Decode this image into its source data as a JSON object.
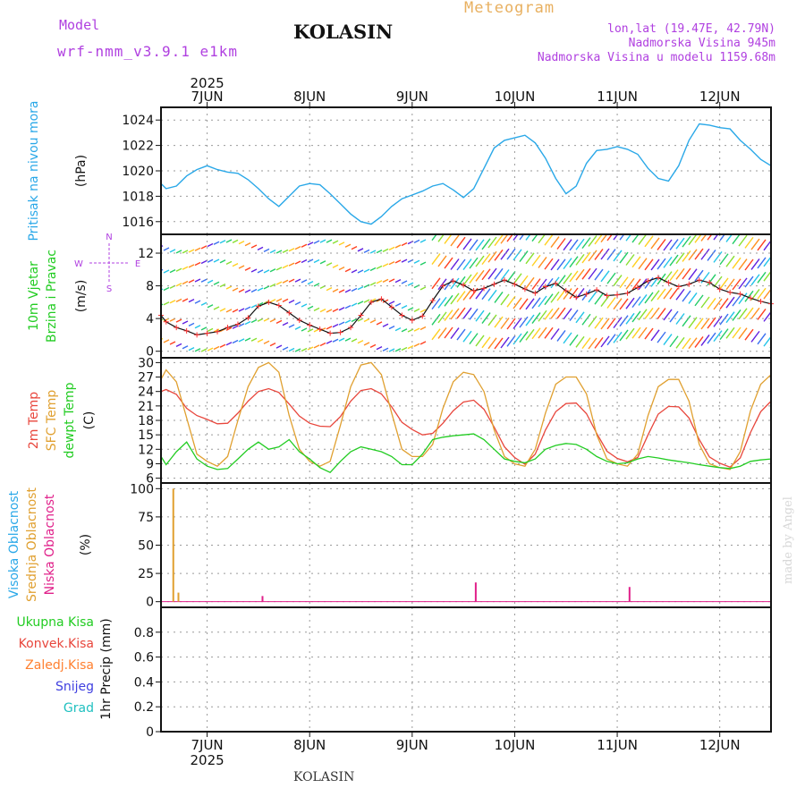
{
  "header": {
    "model_label": "Model",
    "model_name": "wrf-nmm_v3.9.1 e1km",
    "station": "KOLASIN",
    "title": "Meteogram",
    "lonlat": "lon,lat (19.47E, 42.79N)",
    "elevation": "Nadmorska Visina 945m",
    "model_elevation": "Nadmorska Visina u modelu 1159.68m",
    "bottom_station": "KOLASIN",
    "credit": "made by Angel"
  },
  "colors": {
    "pressure": "#2aa8e8",
    "temp2m": "#e8463c",
    "sfc": "#e0a030",
    "dewpt": "#22cc22",
    "mid_cloud": "#e0a030",
    "low_cloud": "#e0208a",
    "high_cloud": "#2aa8e8",
    "purple": "#b040e0"
  },
  "chart_data": [
    {
      "type": "line",
      "panel": "pressure",
      "ylabel": [
        "Pritisak na nivou mora",
        "(hPa)"
      ],
      "ylim": [
        1015,
        1025
      ],
      "yticks": [
        1016,
        1018,
        1020,
        1022,
        1024
      ],
      "xlim": [
        6.55,
        12.5
      ],
      "x_ticks": [
        {
          "x": 7,
          "label": "7JUN"
        },
        {
          "x": 8,
          "label": "8JUN"
        },
        {
          "x": 9,
          "label": "9JUN"
        },
        {
          "x": 10,
          "label": "10JUN"
        },
        {
          "x": 11,
          "label": "11JUN"
        },
        {
          "x": 12,
          "label": "12JUN"
        }
      ],
      "year_label": "2025",
      "series": [
        {
          "x": [
            6.55,
            6.6,
            6.7,
            6.8,
            6.9,
            7.0,
            7.1,
            7.2,
            7.3,
            7.4,
            7.5,
            7.6,
            7.7,
            7.8,
            7.9,
            8.0,
            8.1,
            8.2,
            8.3,
            8.4,
            8.5,
            8.6,
            8.7,
            8.8,
            8.9,
            9.0,
            9.1,
            9.2,
            9.3,
            9.4,
            9.5,
            9.6,
            9.7,
            9.8,
            9.9,
            10.0,
            10.1,
            10.2,
            10.3,
            10.4,
            10.5,
            10.6,
            10.7,
            10.8,
            10.9,
            11.0,
            11.1,
            11.2,
            11.3,
            11.4,
            11.5,
            11.6,
            11.7,
            11.8,
            11.9,
            12.0,
            12.1,
            12.2,
            12.3,
            12.4,
            12.5
          ],
          "y": [
            1019.0,
            1018.6,
            1018.8,
            1019.6,
            1020.1,
            1020.4,
            1020.1,
            1019.9,
            1019.8,
            1019.3,
            1018.6,
            1017.8,
            1017.2,
            1018.0,
            1018.8,
            1019.0,
            1018.9,
            1018.2,
            1017.4,
            1016.6,
            1016.0,
            1015.8,
            1016.4,
            1017.2,
            1017.8,
            1018.1,
            1018.4,
            1018.8,
            1019.0,
            1018.5,
            1017.9,
            1018.6,
            1020.2,
            1021.8,
            1022.4,
            1022.6,
            1022.8,
            1022.2,
            1021.0,
            1019.4,
            1018.2,
            1018.8,
            1020.6,
            1021.6,
            1021.7,
            1021.9,
            1021.7,
            1021.3,
            1020.2,
            1019.4,
            1019.2,
            1020.4,
            1022.4,
            1023.7,
            1023.6,
            1023.4,
            1023.3,
            1022.4,
            1021.7,
            1020.9,
            1020.4
          ]
        }
      ]
    },
    {
      "type": "line",
      "panel": "wind",
      "ylabel": [
        "10m Vjetar",
        "Brzina i Pravac",
        "(m/s)"
      ],
      "compass": {
        "n": "N",
        "e": "E",
        "w": "W",
        "s": "S"
      },
      "ylim": [
        -0.8,
        14.3
      ],
      "yticks": [
        0,
        4,
        8,
        12
      ],
      "series": [
        {
          "name": "Brzina",
          "x": [
            6.55,
            6.6,
            6.7,
            6.8,
            6.9,
            7.0,
            7.1,
            7.2,
            7.3,
            7.4,
            7.5,
            7.6,
            7.7,
            7.8,
            7.9,
            8.0,
            8.1,
            8.2,
            8.3,
            8.4,
            8.5,
            8.6,
            8.7,
            8.8,
            8.9,
            9.0,
            9.1,
            9.2,
            9.3,
            9.4,
            9.5,
            9.6,
            9.7,
            9.8,
            9.9,
            10.0,
            10.1,
            10.2,
            10.3,
            10.4,
            10.5,
            10.6,
            10.7,
            10.8,
            10.9,
            11.0,
            11.1,
            11.2,
            11.3,
            11.4,
            11.5,
            11.6,
            11.7,
            11.8,
            11.9,
            12.0,
            12.1,
            12.2,
            12.3,
            12.4,
            12.5
          ],
          "y": [
            4.4,
            3.6,
            2.9,
            2.5,
            2.0,
            2.2,
            2.4,
            2.9,
            3.3,
            4.1,
            5.5,
            6.0,
            5.6,
            4.7,
            3.8,
            3.2,
            2.7,
            2.2,
            2.3,
            2.9,
            4.4,
            6.0,
            6.4,
            5.4,
            4.4,
            3.8,
            4.3,
            6.2,
            8.0,
            8.6,
            8.1,
            7.4,
            7.7,
            8.2,
            8.7,
            8.2,
            7.6,
            7.1,
            7.9,
            8.3,
            7.4,
            6.6,
            7.0,
            7.5,
            6.8,
            6.9,
            7.1,
            7.8,
            8.6,
            9.0,
            8.4,
            7.9,
            8.2,
            8.7,
            8.4,
            7.6,
            7.2,
            7.0,
            6.5,
            6.1,
            5.8
          ]
        }
      ]
    },
    {
      "type": "line",
      "panel": "temperature",
      "ylabel": [
        "2m Temp",
        "SFC Temp",
        "dewpt Temp",
        "(C)"
      ],
      "ylim": [
        5,
        31
      ],
      "yticks": [
        6,
        9,
        12,
        15,
        18,
        21,
        24,
        27,
        30
      ],
      "series": [
        {
          "name": "2m Temp",
          "x": [
            6.55,
            6.6,
            6.7,
            6.8,
            6.9,
            7.0,
            7.1,
            7.2,
            7.3,
            7.4,
            7.5,
            7.6,
            7.7,
            7.8,
            7.9,
            8.0,
            8.1,
            8.2,
            8.3,
            8.4,
            8.5,
            8.6,
            8.7,
            8.8,
            8.9,
            9.0,
            9.1,
            9.2,
            9.3,
            9.4,
            9.5,
            9.6,
            9.7,
            9.8,
            9.9,
            10.0,
            10.1,
            10.2,
            10.3,
            10.4,
            10.5,
            10.6,
            10.7,
            10.8,
            10.9,
            11.0,
            11.1,
            11.2,
            11.3,
            11.4,
            11.5,
            11.6,
            11.7,
            11.8,
            11.9,
            12.0,
            12.1,
            12.2,
            12.3,
            12.4,
            12.5
          ],
          "y": [
            24.0,
            24.4,
            23.4,
            20.5,
            19.0,
            18.2,
            17.3,
            17.4,
            19.5,
            22.0,
            24.0,
            24.6,
            23.8,
            21.4,
            18.9,
            17.4,
            16.8,
            16.7,
            18.8,
            22.0,
            24.2,
            24.6,
            23.5,
            20.8,
            17.6,
            16.1,
            15.0,
            15.3,
            17.4,
            20.0,
            21.8,
            22.2,
            20.3,
            16.6,
            12.5,
            10.3,
            8.9,
            11.0,
            16.0,
            19.8,
            21.5,
            21.6,
            19.4,
            15.3,
            11.6,
            10.1,
            9.4,
            10.3,
            15.0,
            19.3,
            20.9,
            20.8,
            18.5,
            14.0,
            10.4,
            9.1,
            8.3,
            10.2,
            15.5,
            19.8,
            22.0
          ]
        },
        {
          "name": "SFC Temp",
          "x": [
            6.55,
            6.6,
            6.7,
            6.8,
            6.9,
            7.0,
            7.1,
            7.2,
            7.3,
            7.4,
            7.5,
            7.6,
            7.7,
            7.8,
            7.9,
            8.0,
            8.1,
            8.2,
            8.3,
            8.4,
            8.5,
            8.6,
            8.7,
            8.8,
            8.9,
            9.0,
            9.1,
            9.2,
            9.3,
            9.4,
            9.5,
            9.6,
            9.7,
            9.8,
            9.9,
            10.0,
            10.1,
            10.2,
            10.3,
            10.4,
            10.5,
            10.6,
            10.7,
            10.8,
            10.9,
            11.0,
            11.1,
            11.2,
            11.3,
            11.4,
            11.5,
            11.6,
            11.7,
            11.8,
            11.9,
            12.0,
            12.1,
            12.2,
            12.3,
            12.4,
            12.5
          ],
          "y": [
            26.5,
            28.5,
            26.0,
            18.5,
            11.0,
            9.5,
            8.5,
            10.5,
            18.0,
            25.0,
            29.0,
            30.0,
            28.0,
            19.0,
            12.0,
            9.5,
            8.5,
            9.5,
            17.0,
            25.0,
            29.5,
            30.0,
            27.5,
            19.5,
            12.0,
            10.5,
            10.5,
            13.0,
            20.5,
            26.0,
            28.0,
            27.5,
            24.0,
            16.0,
            10.5,
            9.0,
            8.5,
            12.0,
            19.5,
            25.5,
            27.0,
            27.0,
            23.5,
            15.0,
            10.0,
            9.0,
            8.5,
            11.0,
            19.0,
            25.0,
            26.5,
            26.5,
            22.0,
            13.0,
            9.0,
            8.2,
            7.8,
            11.5,
            20.0,
            25.5,
            27.5
          ]
        },
        {
          "name": "dewpt Temp",
          "x": [
            6.55,
            6.6,
            6.7,
            6.8,
            6.9,
            7.0,
            7.1,
            7.2,
            7.3,
            7.4,
            7.5,
            7.6,
            7.7,
            7.8,
            7.9,
            8.0,
            8.1,
            8.2,
            8.3,
            8.4,
            8.5,
            8.6,
            8.7,
            8.8,
            8.9,
            9.0,
            9.1,
            9.2,
            9.3,
            9.4,
            9.5,
            9.6,
            9.7,
            9.8,
            9.9,
            10.0,
            10.1,
            10.2,
            10.3,
            10.4,
            10.5,
            10.6,
            10.7,
            10.8,
            10.9,
            11.0,
            11.1,
            11.2,
            11.3,
            11.4,
            11.5,
            11.6,
            11.7,
            11.8,
            11.9,
            12.0,
            12.1,
            12.2,
            12.3,
            12.4,
            12.5
          ],
          "y": [
            10.5,
            8.8,
            11.5,
            13.5,
            10.0,
            8.5,
            7.8,
            8.0,
            10.0,
            12.0,
            13.5,
            12.0,
            12.5,
            14.0,
            11.5,
            10.0,
            8.2,
            7.2,
            9.5,
            11.5,
            12.5,
            12.0,
            11.5,
            10.5,
            8.8,
            8.8,
            11.0,
            14.0,
            14.5,
            14.8,
            15.0,
            15.2,
            14.0,
            12.0,
            10.0,
            9.5,
            9.2,
            10.0,
            12.0,
            12.8,
            13.2,
            13.0,
            12.0,
            10.5,
            9.5,
            9.0,
            9.2,
            10.0,
            10.5,
            10.2,
            9.8,
            9.5,
            9.2,
            8.8,
            8.5,
            8.2,
            8.0,
            8.5,
            9.5,
            9.8,
            10.0
          ]
        }
      ]
    },
    {
      "type": "bar",
      "panel": "clouds",
      "ylabel": [
        "Visoka Oblacnost",
        "Srednja Oblacnost",
        "Niska Oblacnost",
        "(%)"
      ],
      "ylim": [
        -5,
        105
      ],
      "yticks": [
        0,
        25,
        50,
        75,
        100
      ],
      "series": [
        {
          "name": "Visoka Oblacnost",
          "x": [],
          "values": []
        },
        {
          "name": "Srednja Oblacnost",
          "x": [
            6.67,
            6.72
          ],
          "values": [
            100,
            8
          ]
        },
        {
          "name": "Niska Oblacnost",
          "x": [
            7.54,
            9.62,
            11.12
          ],
          "values": [
            5,
            17,
            13
          ]
        }
      ]
    },
    {
      "type": "bar",
      "panel": "precipitation",
      "ylabel": [
        "1hr Precip (mm)"
      ],
      "legend": [
        "Ukupna Kisa",
        "Konvek.Kisa",
        "Zaledj.Kisa",
        "Snijeg",
        "Grad"
      ],
      "ylim": [
        0,
        1.0
      ],
      "yticks": [
        0,
        0.2,
        0.4,
        0.6,
        0.8
      ],
      "ytick_labels": [
        "0",
        "0.2",
        "0.4",
        "0.6",
        "0.8"
      ],
      "series": [
        {
          "name": "Ukupna Kisa",
          "values": []
        },
        {
          "name": "Konvek.Kisa",
          "values": []
        },
        {
          "name": "Zaledj.Kisa",
          "values": []
        },
        {
          "name": "Snijeg",
          "values": []
        },
        {
          "name": "Grad",
          "values": []
        }
      ]
    }
  ]
}
